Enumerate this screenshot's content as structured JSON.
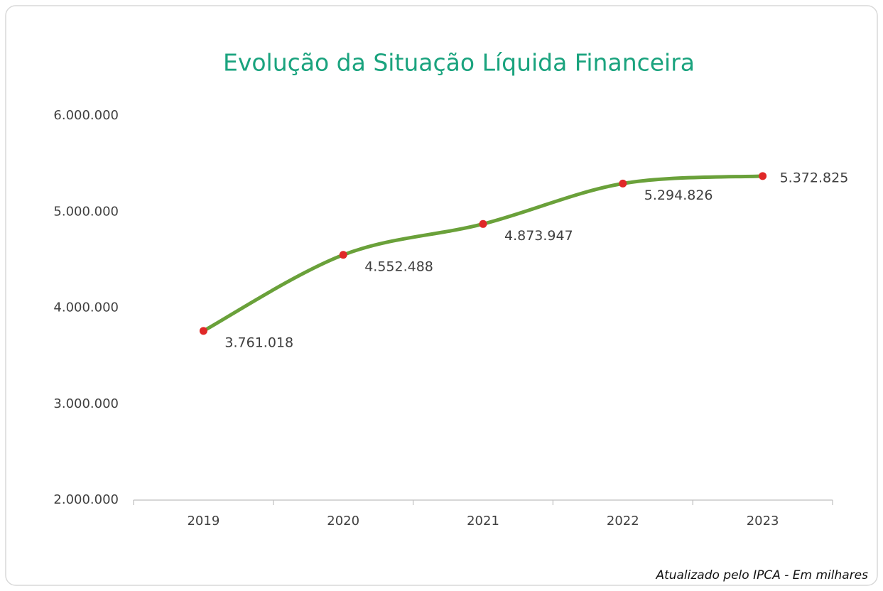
{
  "chart_data": {
    "type": "line",
    "title": "Evolução da Situação Líquida Financeira",
    "note": "Atualizado pelo IPCA - Em milhares",
    "categories": [
      "2019",
      "2020",
      "2021",
      "2022",
      "2023"
    ],
    "values": [
      3761018,
      4552488,
      4873947,
      5294826,
      5372825
    ],
    "value_labels": [
      "3.761.018",
      "4.552.488",
      "4.873.947",
      "5.294.826",
      "5.372.825"
    ],
    "color": "#6aa13a",
    "marker_color": "#e02828",
    "smooth": true,
    "ylim": [
      2000000,
      6000000
    ],
    "yticks": [
      {
        "value": 2000000,
        "label": "2.000.000"
      },
      {
        "value": 3000000,
        "label": "3.000.000"
      },
      {
        "value": 4000000,
        "label": "4.000.000"
      },
      {
        "value": 5000000,
        "label": "5.000.000"
      },
      {
        "value": 6000000,
        "label": "6.000.000"
      }
    ],
    "grid": false
  }
}
